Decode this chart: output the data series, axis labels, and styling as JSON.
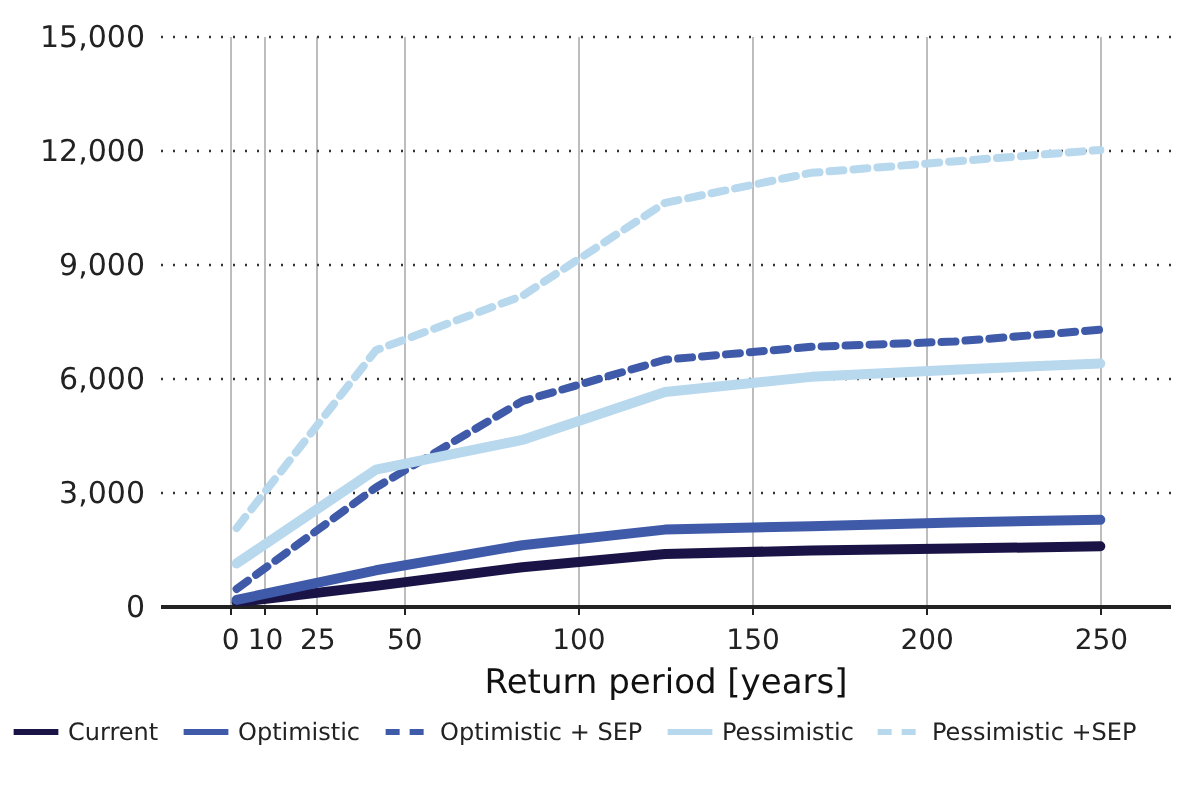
{
  "chart_data": {
    "type": "line",
    "xlabel": "Return period [years]",
    "x": [
      2,
      42,
      84,
      125,
      167,
      208,
      250
    ],
    "xlim": [
      -20,
      270
    ],
    "xticks": [
      0,
      10,
      25,
      50,
      100,
      150,
      200,
      250
    ],
    "ylim": [
      0,
      15000
    ],
    "yticks": [
      0,
      {
        "value": 3000,
        "label": "3,000"
      },
      {
        "value": 6000,
        "label": "6,000"
      },
      {
        "value": 9000,
        "label": "9,000"
      },
      {
        "value": 12000,
        "label": "12,000"
      },
      {
        "value": 15000,
        "label": "15,000"
      }
    ],
    "grid": true,
    "legend": "bottom",
    "marker": "none",
    "series": [
      {
        "name": "Current",
        "color": "#1a1446",
        "line_style": "solid",
        "values": [
          100,
          530,
          1020,
          1370,
          1460,
          1510,
          1570
        ]
      },
      {
        "name": "Optimistic",
        "color": "#3f5aa8",
        "line_style": "solid",
        "values": [
          160,
          940,
          1600,
          2010,
          2100,
          2200,
          2270
        ]
      },
      {
        "name": "Optimistic + SEP",
        "color": "#3f5aa8",
        "line_style": "dashed",
        "values": [
          450,
          3120,
          5390,
          6480,
          6820,
          6960,
          7270
        ]
      },
      {
        "name": "Pessimistic",
        "color": "#b8d8ee",
        "line_style": "solid",
        "values": [
          1120,
          3590,
          4370,
          5630,
          6030,
          6220,
          6380
        ]
      },
      {
        "name": "Pessimistic +SEP",
        "color": "#b8d8ee",
        "line_style": "dashed",
        "values": [
          2050,
          6730,
          8160,
          10610,
          11400,
          11700,
          12000
        ]
      }
    ]
  }
}
